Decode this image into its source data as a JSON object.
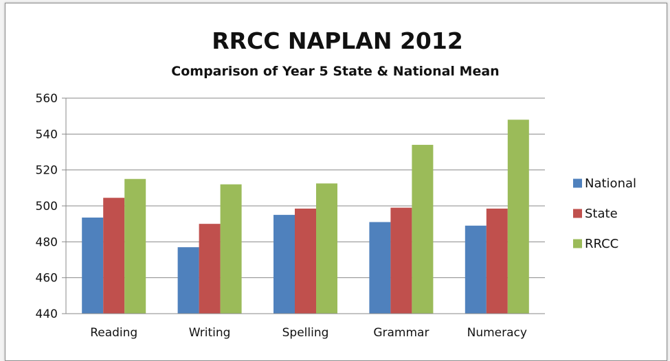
{
  "chart_data": {
    "type": "bar",
    "title": "RRCC NAPLAN 2012",
    "subtitle": "Comparison of Year 5 State & National Mean",
    "xlabel": "",
    "ylabel": "",
    "categories": [
      "Reading",
      "Writing",
      "Spelling",
      "Grammar",
      "Numeracy"
    ],
    "y_ticks": [
      440,
      460,
      480,
      500,
      520,
      540,
      560
    ],
    "ylim": [
      440,
      560
    ],
    "grid": true,
    "legend_position": "right",
    "series": [
      {
        "name": "National",
        "color": "#4f81bd",
        "values": [
          493.5,
          477,
          495,
          491,
          489
        ]
      },
      {
        "name": "State",
        "color": "#c0504d",
        "values": [
          504.5,
          490,
          498.5,
          499,
          498.5
        ]
      },
      {
        "name": "RRCC",
        "color": "#9bbb59",
        "values": [
          515,
          512,
          512.5,
          534,
          548
        ]
      }
    ]
  }
}
